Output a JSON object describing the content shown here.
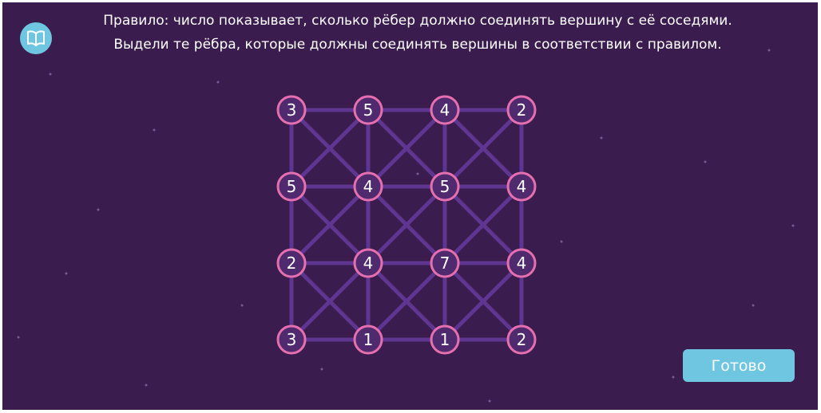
{
  "instructions": {
    "line1": "Правило: число показывает, сколько рёбер должно соединять вершину с её соседями.",
    "line2": "Выдели те рёбра, которые должны соединять вершины в соответствии с правилом."
  },
  "help_icon": "book-icon",
  "grid": {
    "rows": [
      [
        "3",
        "5",
        "4",
        "2"
      ],
      [
        "5",
        "4",
        "5",
        "4"
      ],
      [
        "2",
        "4",
        "7",
        "4"
      ],
      [
        "3",
        "1",
        "1",
        "2"
      ]
    ],
    "edges_selected": 0
  },
  "colors": {
    "background": "#3a1c4e",
    "edge": "#5e3590",
    "node_fill": "#4f2a6e",
    "node_border": "#e66fae",
    "button": "#6ec6e0"
  },
  "done_button": "Готово"
}
